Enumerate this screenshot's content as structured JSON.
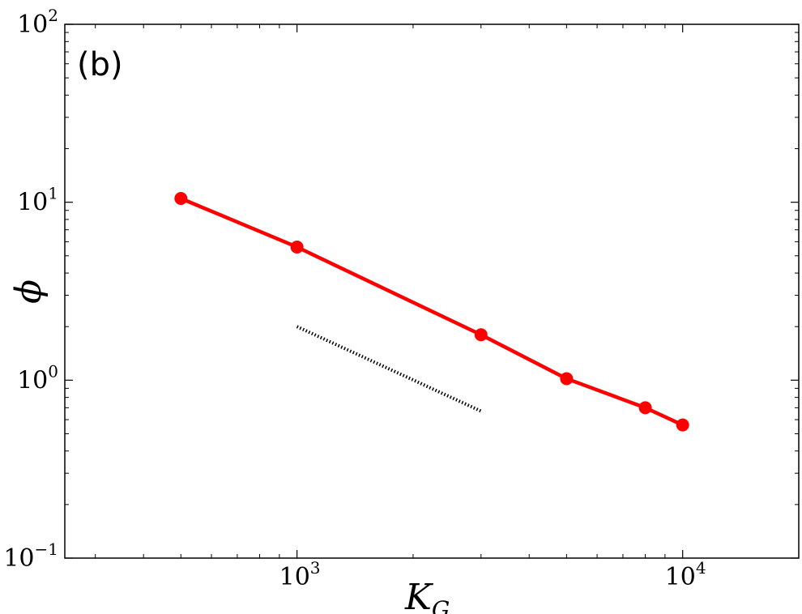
{
  "chart_data": {
    "type": "line",
    "panel_label": "(b)",
    "xlabel": "K",
    "xlabel_sub": "G",
    "ylabel": "ϕ",
    "xscale": "log",
    "yscale": "log",
    "xlim": [
      250,
      20000
    ],
    "ylim": [
      0.1,
      100
    ],
    "grid": false,
    "x_ticks": [
      {
        "value": 1000,
        "base": "10",
        "exp": "3"
      },
      {
        "value": 10000,
        "base": "10",
        "exp": "4"
      }
    ],
    "y_ticks": [
      {
        "value": 0.1,
        "base": "10",
        "exp": "−1"
      },
      {
        "value": 1,
        "base": "10",
        "exp": "0"
      },
      {
        "value": 10,
        "base": "10",
        "exp": "1"
      },
      {
        "value": 100,
        "base": "10",
        "exp": "2"
      }
    ],
    "series": [
      {
        "color": "#ff0000",
        "marker": "circle",
        "x": [
          500,
          1000,
          3000,
          5000,
          8000,
          10000
        ],
        "y": [
          10.5,
          5.6,
          1.8,
          1.02,
          0.7,
          0.56
        ]
      }
    ],
    "reference_line": {
      "style": "dotted",
      "color": "#000000",
      "x": [
        1000,
        3000
      ],
      "y": [
        2.0,
        0.67
      ]
    }
  }
}
